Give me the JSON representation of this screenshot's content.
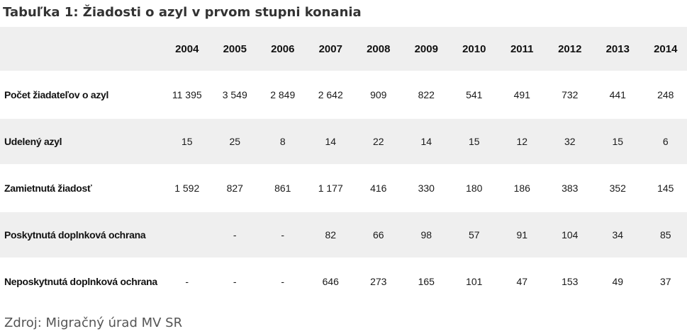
{
  "title": "Tabuľka 1: Žiadosti o azyl v prvom stupni konania",
  "table": {
    "years": [
      "2004",
      "2005",
      "2006",
      "2007",
      "2008",
      "2009",
      "2010",
      "2011",
      "2012",
      "2013",
      "2014"
    ],
    "rows": [
      {
        "label": "Počet žiadateľov o azyl",
        "values": [
          "11 395",
          "3 549",
          "2 849",
          "2 642",
          "909",
          "822",
          "541",
          "491",
          "732",
          "441",
          "248"
        ]
      },
      {
        "label": "Udelený azyl",
        "values": [
          "15",
          "25",
          "8",
          "14",
          "22",
          "14",
          "15",
          "12",
          "32",
          "15",
          "6"
        ]
      },
      {
        "label": "Zamietnutá žiadosť",
        "values": [
          "1 592",
          "827",
          "861",
          "1 177",
          "416",
          "330",
          "180",
          "186",
          "383",
          "352",
          "145"
        ]
      },
      {
        "label": "Poskytnutá doplnková ochrana",
        "values": [
          "",
          "-",
          "-",
          "82",
          "66",
          "98",
          "57",
          "91",
          "104",
          "34",
          "85"
        ]
      },
      {
        "label": "Neposkytnutá doplnková ochrana",
        "values": [
          "-",
          "-",
          "-",
          "646",
          "273",
          "165",
          "101",
          "47",
          "153",
          "49",
          "37"
        ]
      }
    ]
  },
  "source": "Zdroj: Migračný úrad MV SR"
}
